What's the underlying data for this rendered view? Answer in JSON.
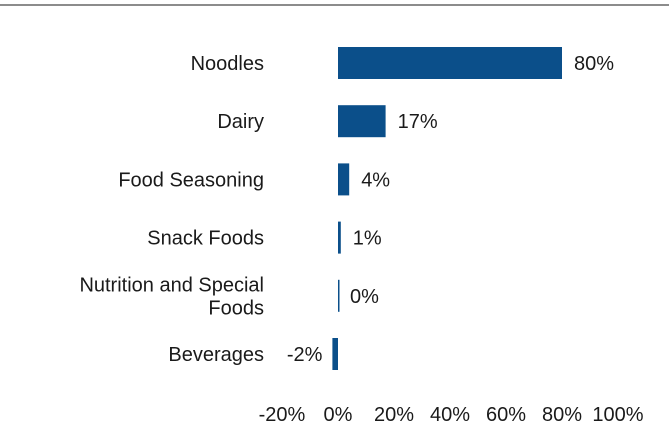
{
  "chart_data": {
    "type": "bar",
    "orientation": "horizontal",
    "categories": [
      "Noodles",
      "Dairy",
      "Food Seasoning",
      "Snack Foods",
      "Nutrition and Special Foods",
      "Beverages"
    ],
    "category_lines": [
      [
        "Noodles"
      ],
      [
        "Dairy"
      ],
      [
        "Food Seasoning"
      ],
      [
        "Snack Foods"
      ],
      [
        "Nutrition and Special",
        "Foods"
      ],
      [
        "Beverages"
      ]
    ],
    "values": [
      80,
      17,
      4,
      1,
      0,
      -2
    ],
    "data_labels": [
      "80%",
      "17%",
      "4%",
      "1%",
      "0%",
      "-2%"
    ],
    "xlim": [
      -20,
      100
    ],
    "x_ticks": [
      -20,
      0,
      20,
      40,
      60,
      80,
      100
    ],
    "x_tick_labels": [
      "-20%",
      "0%",
      "20%",
      "40%",
      "60%",
      "80%",
      "100%"
    ],
    "title": "",
    "xlabel": "",
    "ylabel": "",
    "grid": false,
    "legend": "none",
    "bar_color": "#0b4f8a"
  }
}
